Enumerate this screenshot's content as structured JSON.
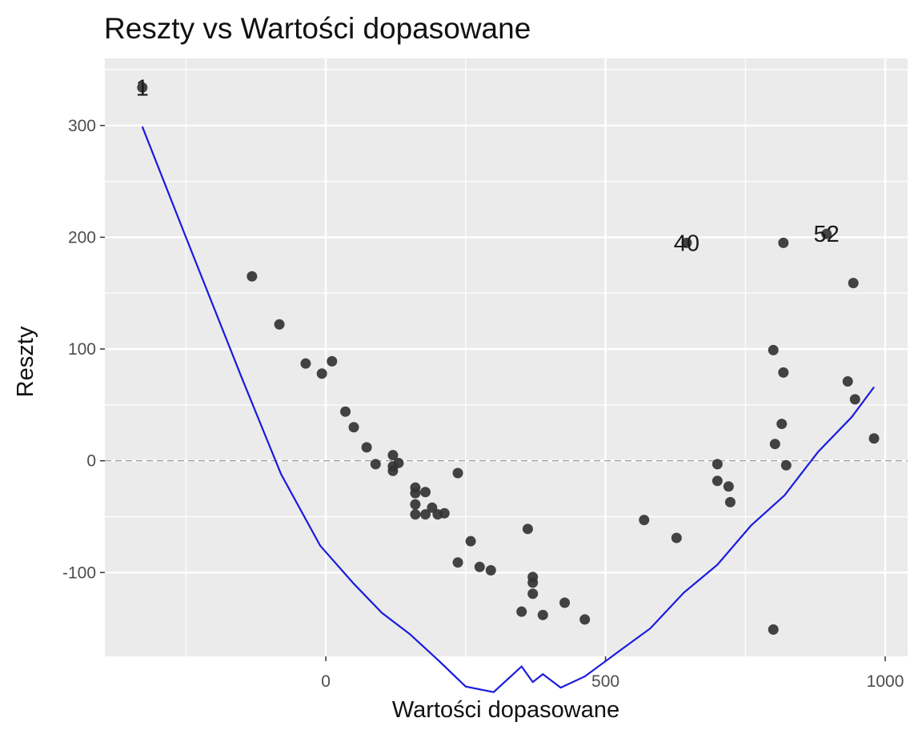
{
  "chart_data": {
    "type": "scatter",
    "title": "Reszty vs Wartości dopasowane",
    "xlabel": "Wartości dopasowane",
    "ylabel": "Reszty",
    "xlim": [
      -395,
      1040
    ],
    "ylim": [
      -175,
      360
    ],
    "xticks": [
      0,
      500,
      1000
    ],
    "yticks": [
      -100,
      0,
      100,
      200,
      300
    ],
    "xtick_labels": [
      "0",
      "500",
      "1000"
    ],
    "ytick_labels": [
      "-100",
      "0",
      "100",
      "200",
      "300"
    ],
    "grid": true,
    "reference_line": {
      "y": 0,
      "style": "dashed"
    },
    "points": [
      [
        -328,
        334
      ],
      [
        -132,
        165
      ],
      [
        -83,
        122
      ],
      [
        -36,
        87
      ],
      [
        -7,
        78
      ],
      [
        11,
        89
      ],
      [
        35,
        44
      ],
      [
        50,
        30
      ],
      [
        73,
        12
      ],
      [
        89,
        -3
      ],
      [
        120,
        5
      ],
      [
        120,
        -5
      ],
      [
        120,
        -9
      ],
      [
        130,
        -2
      ],
      [
        160,
        -24
      ],
      [
        160,
        -29
      ],
      [
        160,
        -39
      ],
      [
        160,
        -48
      ],
      [
        178,
        -28
      ],
      [
        178,
        -48
      ],
      [
        190,
        -42
      ],
      [
        200,
        -48
      ],
      [
        212,
        -47
      ],
      [
        236,
        -11
      ],
      [
        236,
        -91
      ],
      [
        259,
        -72
      ],
      [
        275,
        -95
      ],
      [
        295,
        -98
      ],
      [
        361,
        -61
      ],
      [
        350,
        -135
      ],
      [
        370,
        -104
      ],
      [
        370,
        -109
      ],
      [
        370,
        -119
      ],
      [
        388,
        -138
      ],
      [
        427,
        -127
      ],
      [
        463,
        -142
      ],
      [
        569,
        -53
      ],
      [
        627,
        -69
      ],
      [
        645,
        195
      ],
      [
        700,
        -3
      ],
      [
        700,
        -18
      ],
      [
        720,
        -23
      ],
      [
        723,
        -37
      ],
      [
        800,
        99
      ],
      [
        800,
        -151
      ],
      [
        803,
        15
      ],
      [
        815,
        33
      ],
      [
        818,
        79
      ],
      [
        818,
        195
      ],
      [
        823,
        -4
      ],
      [
        933,
        71
      ],
      [
        943,
        159
      ],
      [
        946,
        55
      ],
      [
        980,
        20
      ],
      [
        895,
        203
      ]
    ],
    "point_labels": [
      {
        "text": "1",
        "x": -328,
        "y": 334
      },
      {
        "text": "40",
        "x": 645,
        "y": 195
      },
      {
        "text": "52",
        "x": 895,
        "y": 203
      }
    ],
    "smooth": {
      "color": "#1a1adf",
      "x": [
        -328,
        -250,
        -150,
        -80,
        -10,
        50,
        100,
        150,
        200,
        250,
        300,
        350,
        370,
        388,
        420,
        463,
        520,
        580,
        640,
        700,
        760,
        820,
        880,
        940,
        980
      ],
      "y": [
        299,
        200,
        74,
        -12,
        -76,
        -110,
        -136,
        -155,
        -178,
        -202,
        -207,
        -184,
        -198,
        -191,
        -203,
        -193,
        -172,
        -150,
        -118,
        -93,
        -58,
        -31,
        8,
        39,
        66
      ]
    },
    "colors": {
      "panel": "#ebebeb",
      "grid": "#ffffff",
      "point": "#333333",
      "line": "#1a1adf"
    }
  }
}
